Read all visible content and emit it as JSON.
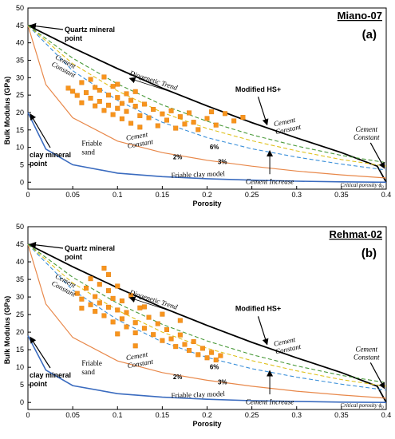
{
  "figure": {
    "panels": [
      {
        "id": "a",
        "well_title": "Miano-07",
        "panel_label": "(a)",
        "xlabel": "Porosity",
        "ylabel": "Bulk Modulus (GPa)"
      },
      {
        "id": "b",
        "well_title": "Rehmat-02",
        "panel_label": "(b)",
        "xlabel": "Porosity",
        "ylabel": "Bulk Modulus (GPa)"
      }
    ]
  },
  "chart_data": [
    {
      "type": "scatter",
      "title": "Miano-07",
      "panel_label": "(a)",
      "xlabel": "Porosity",
      "ylabel": "Bulk Modulus (GPa)",
      "xlim": [
        0,
        0.4
      ],
      "ylim": [
        -2,
        50
      ],
      "xticks": [
        "0",
        "0.05",
        "0.1",
        "0.15",
        "0.2",
        "0.25",
        "0.3",
        "0.35",
        "0.4"
      ],
      "yticks": [
        "0",
        "5",
        "10",
        "15",
        "20",
        "25",
        "30",
        "35",
        "40",
        "45",
        "50"
      ],
      "grid": false,
      "colors": {
        "points": "#f7941d",
        "modified_hs": "#000000",
        "friable_sand": "#e8884a",
        "friable_clay": "#3a6bbf",
        "cement_constant_2": "#3a8fd9",
        "cement_constant_3": "#e0c21e",
        "cement_constant_6": "#4a9a3a"
      },
      "curves": [
        {
          "name": "Modified HS+",
          "x": [
            0,
            0.05,
            0.1,
            0.15,
            0.2,
            0.25,
            0.3,
            0.35,
            0.39,
            0.4
          ],
          "y": [
            45,
            38.6,
            32.6,
            27,
            21.9,
            17.1,
            12.7,
            8.5,
            4.6,
            0
          ]
        },
        {
          "name": "Friable sand",
          "x": [
            0,
            0.02,
            0.05,
            0.1,
            0.15,
            0.2,
            0.25,
            0.3,
            0.35,
            0.4
          ],
          "y": [
            45,
            28,
            18.5,
            11.8,
            8.5,
            6.3,
            4.6,
            3.2,
            2.1,
            1.2
          ]
        },
        {
          "name": "Friable clay model",
          "x": [
            0,
            0.02,
            0.05,
            0.1,
            0.15,
            0.2,
            0.25,
            0.3,
            0.35,
            0.4
          ],
          "y": [
            20,
            9.5,
            5,
            2.6,
            1.6,
            1,
            0.6,
            0.3,
            0.1,
            0
          ]
        },
        {
          "name": "2%",
          "x": [
            0,
            0.05,
            0.1,
            0.15,
            0.2,
            0.25,
            0.3,
            0.35,
            0.4
          ],
          "y": [
            45,
            32,
            23.5,
            17.2,
            12.8,
            9.6,
            7.2,
            5.2,
            3.5
          ]
        },
        {
          "name": "3%",
          "x": [
            0,
            0.05,
            0.1,
            0.15,
            0.2,
            0.25,
            0.3,
            0.35,
            0.4
          ],
          "y": [
            45,
            34,
            26.2,
            20,
            15.4,
            11.9,
            9,
            6.5,
            4.6
          ]
        },
        {
          "name": "6%",
          "x": [
            0,
            0.05,
            0.1,
            0.15,
            0.2,
            0.25,
            0.3,
            0.35,
            0.4
          ],
          "y": [
            45,
            35.6,
            28.2,
            22.2,
            17.5,
            13.6,
            10.4,
            7.7,
            5.6
          ]
        }
      ],
      "points": [
        {
          "x": 0.045,
          "y": 27
        },
        {
          "x": 0.05,
          "y": 26.1
        },
        {
          "x": 0.055,
          "y": 24.9
        },
        {
          "x": 0.06,
          "y": 28.6
        },
        {
          "x": 0.06,
          "y": 22.8
        },
        {
          "x": 0.065,
          "y": 25.7
        },
        {
          "x": 0.07,
          "y": 29.5
        },
        {
          "x": 0.07,
          "y": 24.1
        },
        {
          "x": 0.075,
          "y": 21.9
        },
        {
          "x": 0.075,
          "y": 27.2
        },
        {
          "x": 0.08,
          "y": 26.4
        },
        {
          "x": 0.08,
          "y": 23.2
        },
        {
          "x": 0.085,
          "y": 30.2
        },
        {
          "x": 0.085,
          "y": 20.6
        },
        {
          "x": 0.09,
          "y": 25
        },
        {
          "x": 0.09,
          "y": 22.1
        },
        {
          "x": 0.095,
          "y": 27.5
        },
        {
          "x": 0.095,
          "y": 19.4
        },
        {
          "x": 0.1,
          "y": 24.3
        },
        {
          "x": 0.1,
          "y": 21.2
        },
        {
          "x": 0.1,
          "y": 28.1
        },
        {
          "x": 0.105,
          "y": 22.6
        },
        {
          "x": 0.105,
          "y": 18.2
        },
        {
          "x": 0.11,
          "y": 25.4
        },
        {
          "x": 0.11,
          "y": 20.3
        },
        {
          "x": 0.115,
          "y": 23.5
        },
        {
          "x": 0.115,
          "y": 16.9
        },
        {
          "x": 0.12,
          "y": 21.8
        },
        {
          "x": 0.12,
          "y": 26
        },
        {
          "x": 0.125,
          "y": 19.1
        },
        {
          "x": 0.125,
          "y": 15.8
        },
        {
          "x": 0.13,
          "y": 22.4
        },
        {
          "x": 0.135,
          "y": 18.5
        },
        {
          "x": 0.14,
          "y": 20.9
        },
        {
          "x": 0.145,
          "y": 16.2
        },
        {
          "x": 0.15,
          "y": 19.6
        },
        {
          "x": 0.155,
          "y": 17.8
        },
        {
          "x": 0.16,
          "y": 20.5
        },
        {
          "x": 0.165,
          "y": 15.5
        },
        {
          "x": 0.17,
          "y": 18.8
        },
        {
          "x": 0.175,
          "y": 16.7
        },
        {
          "x": 0.18,
          "y": 19.9
        },
        {
          "x": 0.185,
          "y": 17.2
        },
        {
          "x": 0.19,
          "y": 15.1
        },
        {
          "x": 0.2,
          "y": 18.3
        },
        {
          "x": 0.205,
          "y": 20.2
        },
        {
          "x": 0.21,
          "y": 16.4
        },
        {
          "x": 0.22,
          "y": 19.7
        },
        {
          "x": 0.23,
          "y": 17.6
        },
        {
          "x": 0.24,
          "y": 18.6
        }
      ]
    },
    {
      "type": "scatter",
      "title": "Rehmat-02",
      "panel_label": "(b)",
      "xlabel": "Porosity",
      "ylabel": "Bulk Modulus (GPa)",
      "xlim": [
        0,
        0.4
      ],
      "ylim": [
        -2,
        50
      ],
      "xticks": [
        "0",
        "0.05",
        "0.1",
        "0.15",
        "0.2",
        "0.25",
        "0.3",
        "0.35",
        "0.4"
      ],
      "yticks": [
        "0",
        "5",
        "10",
        "15",
        "20",
        "25",
        "30",
        "35",
        "40",
        "45",
        "50"
      ],
      "grid": false,
      "colors": {
        "points": "#f7941d",
        "modified_hs": "#000000",
        "friable_sand": "#e8884a",
        "friable_clay": "#3a6bbf",
        "cement_constant_2": "#3a8fd9",
        "cement_constant_3": "#e0c21e",
        "cement_constant_6": "#4a9a3a"
      },
      "curves": [
        {
          "name": "Modified HS+",
          "x": [
            0,
            0.05,
            0.1,
            0.15,
            0.2,
            0.25,
            0.3,
            0.35,
            0.39,
            0.4
          ],
          "y": [
            45,
            38.6,
            32.6,
            27,
            21.9,
            17.1,
            12.7,
            8.5,
            4.6,
            0
          ]
        },
        {
          "name": "Friable sand",
          "x": [
            0,
            0.02,
            0.05,
            0.1,
            0.15,
            0.2,
            0.25,
            0.3,
            0.35,
            0.4
          ],
          "y": [
            45,
            28,
            18.5,
            11.8,
            8.5,
            6.3,
            4.6,
            3.2,
            2.1,
            1.2
          ]
        },
        {
          "name": "Friable clay model",
          "x": [
            0,
            0.02,
            0.05,
            0.1,
            0.15,
            0.2,
            0.25,
            0.3,
            0.35,
            0.4
          ],
          "y": [
            19,
            9.2,
            4.8,
            2.5,
            1.5,
            0.9,
            0.5,
            0.3,
            0.1,
            0
          ]
        },
        {
          "name": "2%",
          "x": [
            0,
            0.05,
            0.1,
            0.15,
            0.2,
            0.25,
            0.3,
            0.35,
            0.4
          ],
          "y": [
            45,
            32,
            23.5,
            17.2,
            12.8,
            9.6,
            7.2,
            5.2,
            3.5
          ]
        },
        {
          "name": "3%",
          "x": [
            0,
            0.05,
            0.1,
            0.15,
            0.2,
            0.25,
            0.3,
            0.35,
            0.4
          ],
          "y": [
            45,
            34,
            26.2,
            20,
            15.4,
            11.9,
            9,
            6.5,
            4.6
          ]
        },
        {
          "name": "6%",
          "x": [
            0,
            0.05,
            0.1,
            0.15,
            0.2,
            0.25,
            0.3,
            0.35,
            0.4
          ],
          "y": [
            45,
            35.6,
            28.2,
            22.2,
            17.5,
            13.6,
            10.4,
            7.7,
            5.6
          ]
        }
      ],
      "points": [
        {
          "x": 0.055,
          "y": 31
        },
        {
          "x": 0.06,
          "y": 29.4
        },
        {
          "x": 0.065,
          "y": 32.5
        },
        {
          "x": 0.07,
          "y": 27.8
        },
        {
          "x": 0.07,
          "y": 35.2
        },
        {
          "x": 0.075,
          "y": 30.1
        },
        {
          "x": 0.075,
          "y": 25.9
        },
        {
          "x": 0.08,
          "y": 33.6
        },
        {
          "x": 0.08,
          "y": 28.3
        },
        {
          "x": 0.085,
          "y": 38.2
        },
        {
          "x": 0.085,
          "y": 24.7
        },
        {
          "x": 0.09,
          "y": 31.8
        },
        {
          "x": 0.09,
          "y": 27.1
        },
        {
          "x": 0.095,
          "y": 22.9
        },
        {
          "x": 0.095,
          "y": 29.6
        },
        {
          "x": 0.1,
          "y": 26.3
        },
        {
          "x": 0.1,
          "y": 33.1
        },
        {
          "x": 0.105,
          "y": 23.8
        },
        {
          "x": 0.105,
          "y": 28.9
        },
        {
          "x": 0.11,
          "y": 21.5
        },
        {
          "x": 0.11,
          "y": 25.6
        },
        {
          "x": 0.115,
          "y": 30.4
        },
        {
          "x": 0.12,
          "y": 22.7
        },
        {
          "x": 0.12,
          "y": 19.8
        },
        {
          "x": 0.125,
          "y": 26.9
        },
        {
          "x": 0.13,
          "y": 21.1
        },
        {
          "x": 0.135,
          "y": 24.2
        },
        {
          "x": 0.14,
          "y": 19.3
        },
        {
          "x": 0.145,
          "y": 22.4
        },
        {
          "x": 0.15,
          "y": 17.6
        },
        {
          "x": 0.155,
          "y": 20.7
        },
        {
          "x": 0.16,
          "y": 18.1
        },
        {
          "x": 0.165,
          "y": 15.9
        },
        {
          "x": 0.17,
          "y": 19.2
        },
        {
          "x": 0.175,
          "y": 16.5
        },
        {
          "x": 0.18,
          "y": 14.8
        },
        {
          "x": 0.185,
          "y": 17.3
        },
        {
          "x": 0.19,
          "y": 13.6
        },
        {
          "x": 0.195,
          "y": 15.4
        },
        {
          "x": 0.2,
          "y": 12.7
        },
        {
          "x": 0.205,
          "y": 14.2
        },
        {
          "x": 0.21,
          "y": 12.1
        },
        {
          "x": 0.215,
          "y": 13.3
        },
        {
          "x": 0.13,
          "y": 27.2
        },
        {
          "x": 0.09,
          "y": 36.4
        },
        {
          "x": 0.06,
          "y": 26.8
        },
        {
          "x": 0.15,
          "y": 25.1
        },
        {
          "x": 0.17,
          "y": 23.3
        },
        {
          "x": 0.12,
          "y": 16.1
        },
        {
          "x": 0.1,
          "y": 19.5
        }
      ]
    }
  ],
  "annotations": {
    "quartz": "Quartz mineral point",
    "clay": "clay mineral point",
    "friable_sand": "Friable sand",
    "friable_clay": "Friable clay model",
    "diagenetic": "Diagenetic Trend",
    "modified_hs": "Modified HS+",
    "cement_constant": "Cement Constant",
    "cement_increase": "Cement Increase",
    "critical": "Critical porosity",
    "phi0": "0",
    "pct2": "2%",
    "pct3": "3%",
    "pct6": "6%"
  }
}
